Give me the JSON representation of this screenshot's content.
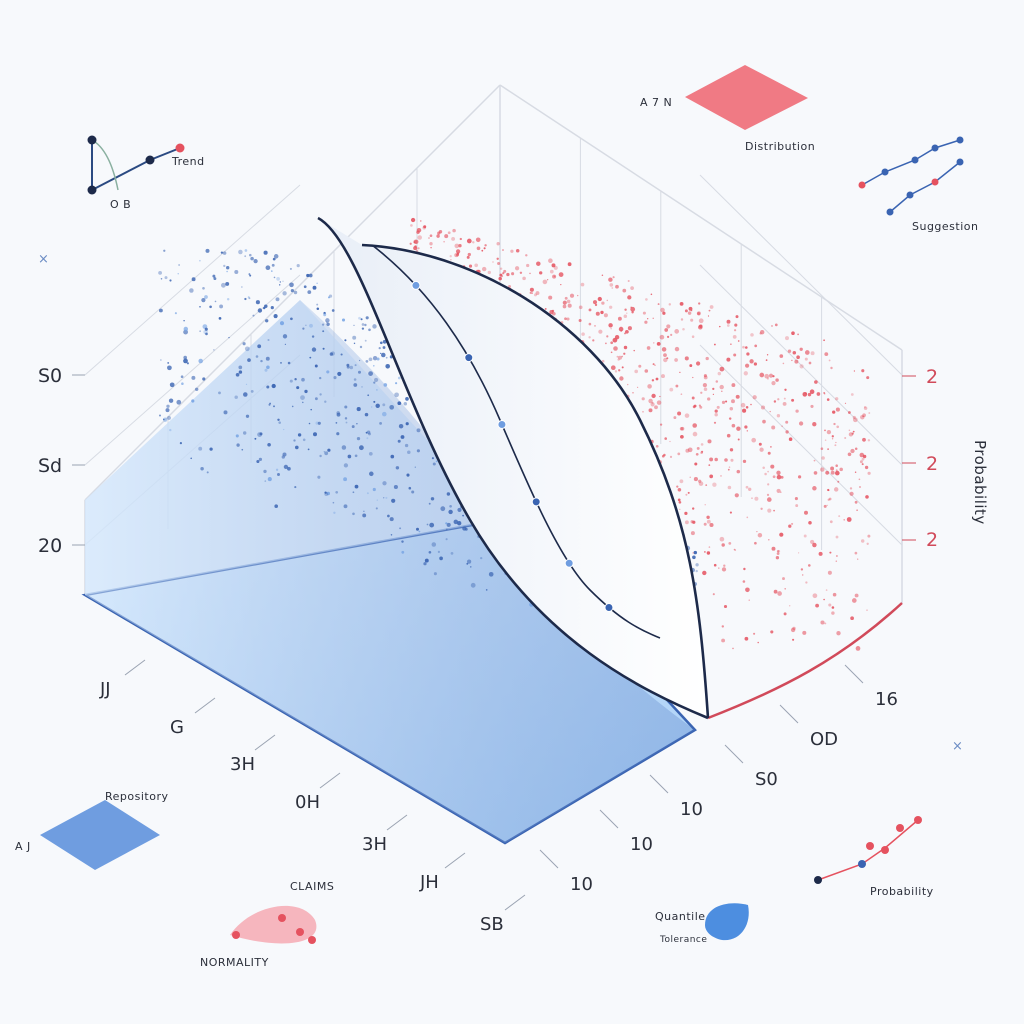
{
  "colors": {
    "blue": "#8ec0f2",
    "blue_dark": "#3a64b2",
    "red": "#e5525f",
    "curve": "#1d2a4a",
    "grid": "#d7dbe3",
    "background": "#f7f9fc"
  },
  "chart_data": {
    "type": "scatter",
    "title": "",
    "style": "isometric-3d",
    "grid": true,
    "y_left_ticks": [
      "S0",
      "Sd",
      "20"
    ],
    "y_right_ticks": [
      "2",
      "2",
      "2"
    ],
    "y_right_label": "Probability",
    "x_front_ticks": [
      "JJ",
      "G",
      "3H",
      "0H",
      "3H",
      "JH",
      "SB"
    ],
    "x_right_ticks": [
      "16",
      "OD",
      "S0",
      "10",
      "10",
      "10"
    ],
    "series": [
      {
        "name": "",
        "color": "#3a64b2",
        "region": "left"
      },
      {
        "name": "",
        "color": "#e5525f",
        "region": "right"
      }
    ],
    "center_curve_points": [
      {
        "t": 0.12
      },
      {
        "t": 0.3
      },
      {
        "t": 0.45
      },
      {
        "t": 0.62
      },
      {
        "t": 0.76
      },
      {
        "t": 0.88
      }
    ]
  },
  "legend": {
    "top_left_label": "Trend",
    "top_left_sub": "O B",
    "top_center_label": "Distribution",
    "top_center_sub": "A 7 N",
    "top_right_label": "Suggestion",
    "bottom_left_label": "Repository",
    "bottom_left_sub": "A J",
    "bottom_center_label": "CLAIMS",
    "bottom_center_sub": "NORMALITY",
    "bottom_right_label": "Probability",
    "bottom_mid_label": "Quantile",
    "bottom_mid_sub": "Tolerance"
  }
}
